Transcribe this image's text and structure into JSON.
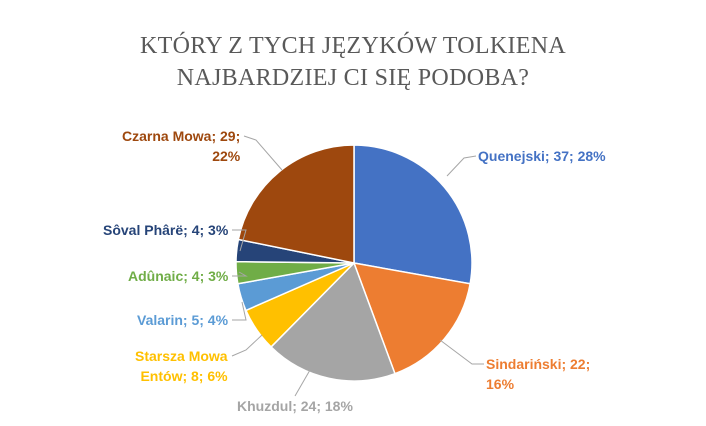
{
  "chart_data": {
    "type": "pie",
    "title_lines": [
      "KTÓRY Z TYCH JĘZYKÓW TOLKIENA",
      "NAJBARDZIEJ CI SIĘ PODOBA?"
    ],
    "slices": [
      {
        "name": "Quenejski",
        "value": 37,
        "percent": "28%",
        "color": "#4472C4"
      },
      {
        "name": "Sindariński",
        "value": 22,
        "percent": "16%",
        "color": "#ED7D31"
      },
      {
        "name": "Khuzdul",
        "value": 24,
        "percent": "18%",
        "color": "#A5A5A5"
      },
      {
        "name": "Starsza Mowa Entów",
        "value": 8,
        "percent": "6%",
        "color": "#FFC000"
      },
      {
        "name": "Valarin",
        "value": 5,
        "percent": "4%",
        "color": "#5B9BD5"
      },
      {
        "name": "Adûnaic",
        "value": 4,
        "percent": "3%",
        "color": "#70AD47"
      },
      {
        "name": "Sôval Phârë",
        "value": 4,
        "percent": "3%",
        "color": "#264478"
      },
      {
        "name": "Czarna Mowa",
        "value": 29,
        "percent": "22%",
        "color": "#9E480E"
      }
    ],
    "labels": [
      {
        "lines": [
          "Quenejski; 37; 28%"
        ]
      },
      {
        "lines": [
          "Sindariński; 22;",
          "16%"
        ]
      },
      {
        "lines": [
          "Khuzdul; 24; 18%"
        ]
      },
      {
        "lines": [
          "Starsza Mowa",
          "Entów; 8; 6%"
        ]
      },
      {
        "lines": [
          "Valarin; 5; 4%"
        ]
      },
      {
        "lines": [
          "Adûnaic; 4; 3%"
        ]
      },
      {
        "lines": [
          "Sôval Phârë; 4; 3%"
        ]
      },
      {
        "lines": [
          "Czarna Mowa; 29;",
          "22%"
        ]
      }
    ],
    "start_angle_deg": 0,
    "direction": "clockwise",
    "legend": "none",
    "label_format": "name; value; percent"
  }
}
